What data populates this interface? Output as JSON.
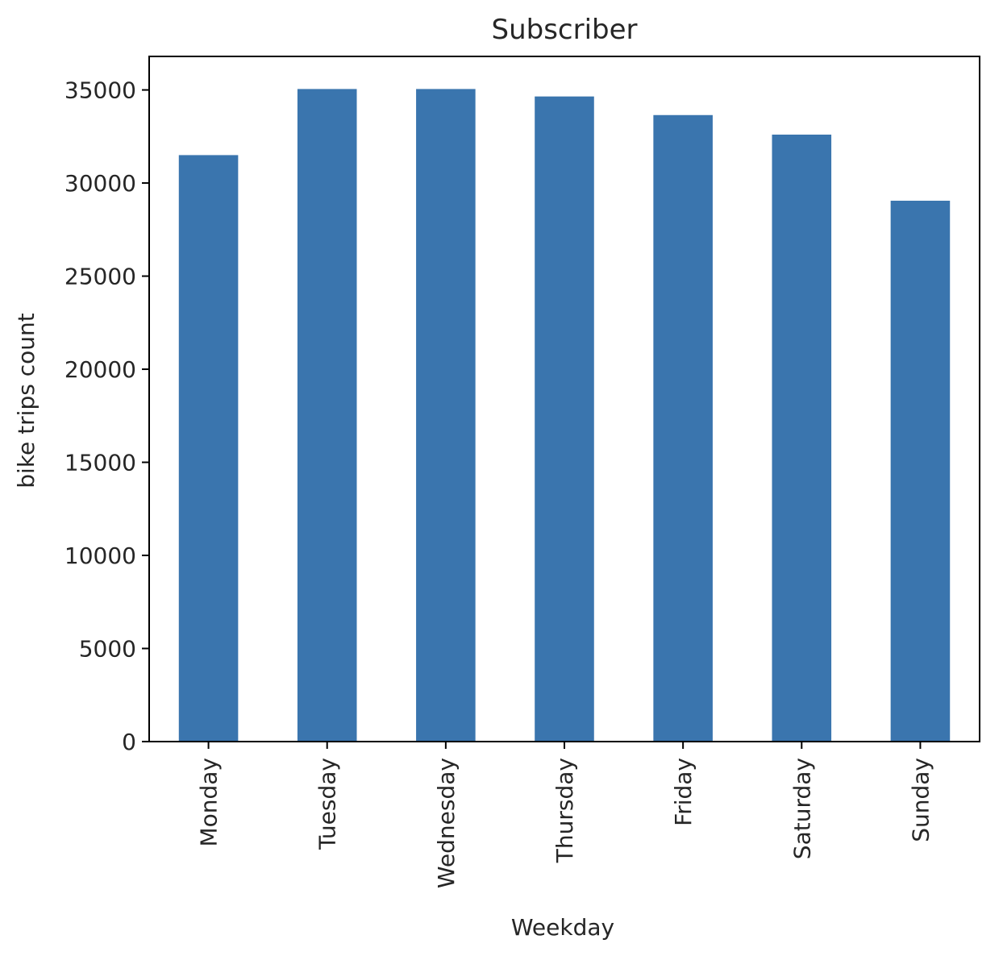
{
  "chart_data": {
    "type": "bar",
    "title": "Subscriber",
    "xlabel": "Weekday",
    "ylabel": "bike trips count",
    "categories": [
      "Monday",
      "Tuesday",
      "Wednesday",
      "Thursday",
      "Friday",
      "Saturday",
      "Sunday"
    ],
    "values": [
      31500,
      35050,
      35050,
      34650,
      33650,
      32600,
      29050
    ],
    "ylim": [
      0,
      36800
    ],
    "yticks": [
      0,
      5000,
      10000,
      15000,
      20000,
      25000,
      30000,
      35000
    ],
    "bar_color": "#3a75ae",
    "grid": false,
    "legend": "none"
  }
}
